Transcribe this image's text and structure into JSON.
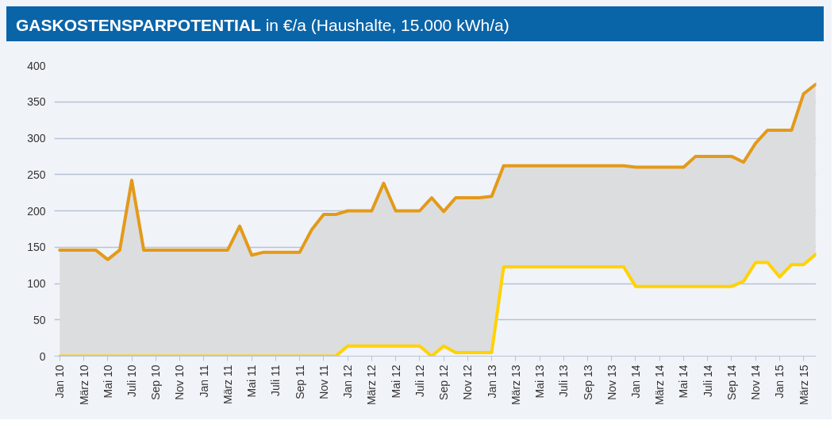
{
  "chart_data": {
    "type": "line",
    "title": "GASKOSTENSPARPOTENTIAL in €/a (Haushalte, 15.000 kWh/a)",
    "categories": [
      "Jan 10",
      null,
      "März 10",
      null,
      "Mai 10",
      null,
      "Juli 10",
      null,
      "Sep 10",
      null,
      "Nov 10",
      null,
      "Jan 11",
      null,
      "März 11",
      null,
      "Mai 11",
      null,
      "Juli 11",
      null,
      "Sep 11",
      null,
      "Nov 11",
      null,
      "Jan 12",
      null,
      "März 12",
      null,
      "Mai 12",
      null,
      "Juli 12",
      null,
      "Sep 12",
      null,
      "Nov 12",
      null,
      "Jan 13",
      null,
      "März 13",
      null,
      "Mai 13",
      null,
      "Juli 13",
      null,
      "Sep 13",
      null,
      "Nov 13",
      null,
      "Jan 14",
      null,
      "März 14",
      null,
      "Mai 14",
      null,
      "Juli 14",
      null,
      "Sep 14",
      null,
      "Nov 14",
      null,
      "Jan 15",
      null,
      "März 15",
      null
    ],
    "series": [
      {
        "color": "#e39a1a",
        "values": [
          146,
          146,
          146,
          146,
          133,
          146,
          242,
          146,
          146,
          146,
          146,
          146,
          146,
          146,
          146,
          179,
          139,
          143,
          143,
          143,
          143,
          174,
          195,
          195,
          200,
          200,
          200,
          238,
          200,
          200,
          200,
          218,
          199,
          218,
          218,
          218,
          220,
          262,
          262,
          262,
          262,
          262,
          262,
          262,
          262,
          262,
          262,
          262,
          260,
          260,
          260,
          260,
          260,
          275,
          275,
          275,
          275,
          267,
          293,
          311,
          311,
          311,
          361,
          374
        ],
        "lower": [
          0,
          0,
          0,
          0,
          0,
          0,
          0,
          0,
          0,
          0,
          0,
          0,
          0,
          0,
          0,
          0,
          0,
          0,
          0,
          0,
          0,
          0,
          0,
          0,
          14,
          14,
          14,
          14,
          14,
          14,
          14,
          0,
          14,
          5,
          5,
          5,
          5,
          123,
          123,
          123,
          123,
          123,
          123,
          123,
          123,
          123,
          123,
          123,
          96,
          96,
          96,
          96,
          96,
          96,
          96,
          96,
          96,
          103,
          129,
          129,
          109,
          126,
          126,
          140
        ],
        "upper": [
          146,
          146,
          146,
          146,
          133,
          146,
          242,
          146,
          146,
          146,
          146,
          146,
          146,
          146,
          146,
          179,
          139,
          143,
          143,
          143,
          143,
          174,
          195,
          195,
          200,
          200,
          200,
          238,
          200,
          200,
          200,
          218,
          199,
          218,
          218,
          218,
          220,
          262,
          262,
          262,
          262,
          262,
          262,
          262,
          262,
          262,
          262,
          262,
          260,
          260,
          260,
          260,
          260,
          275,
          275,
          275,
          275,
          267,
          293,
          311,
          311,
          311,
          361,
          374
        ]
      },
      {
        "color": "#ffd200",
        "values": [
          0,
          0,
          0,
          0,
          0,
          0,
          0,
          0,
          0,
          0,
          0,
          0,
          0,
          0,
          0,
          0,
          0,
          0,
          0,
          0,
          0,
          0,
          0,
          0,
          14,
          14,
          14,
          14,
          14,
          14,
          14,
          0,
          14,
          5,
          5,
          5,
          5,
          123,
          123,
          123,
          123,
          123,
          123,
          123,
          123,
          123,
          123,
          123,
          96,
          96,
          96,
          96,
          96,
          96,
          96,
          96,
          96,
          103,
          129,
          129,
          109,
          126,
          126,
          140
        ]
      }
    ],
    "ylim": [
      0,
      400
    ],
    "yticks": [
      0,
      50,
      100,
      150,
      200,
      250,
      300,
      350,
      400
    ],
    "grid": "y",
    "marker": "none",
    "line_style": "solid"
  }
}
